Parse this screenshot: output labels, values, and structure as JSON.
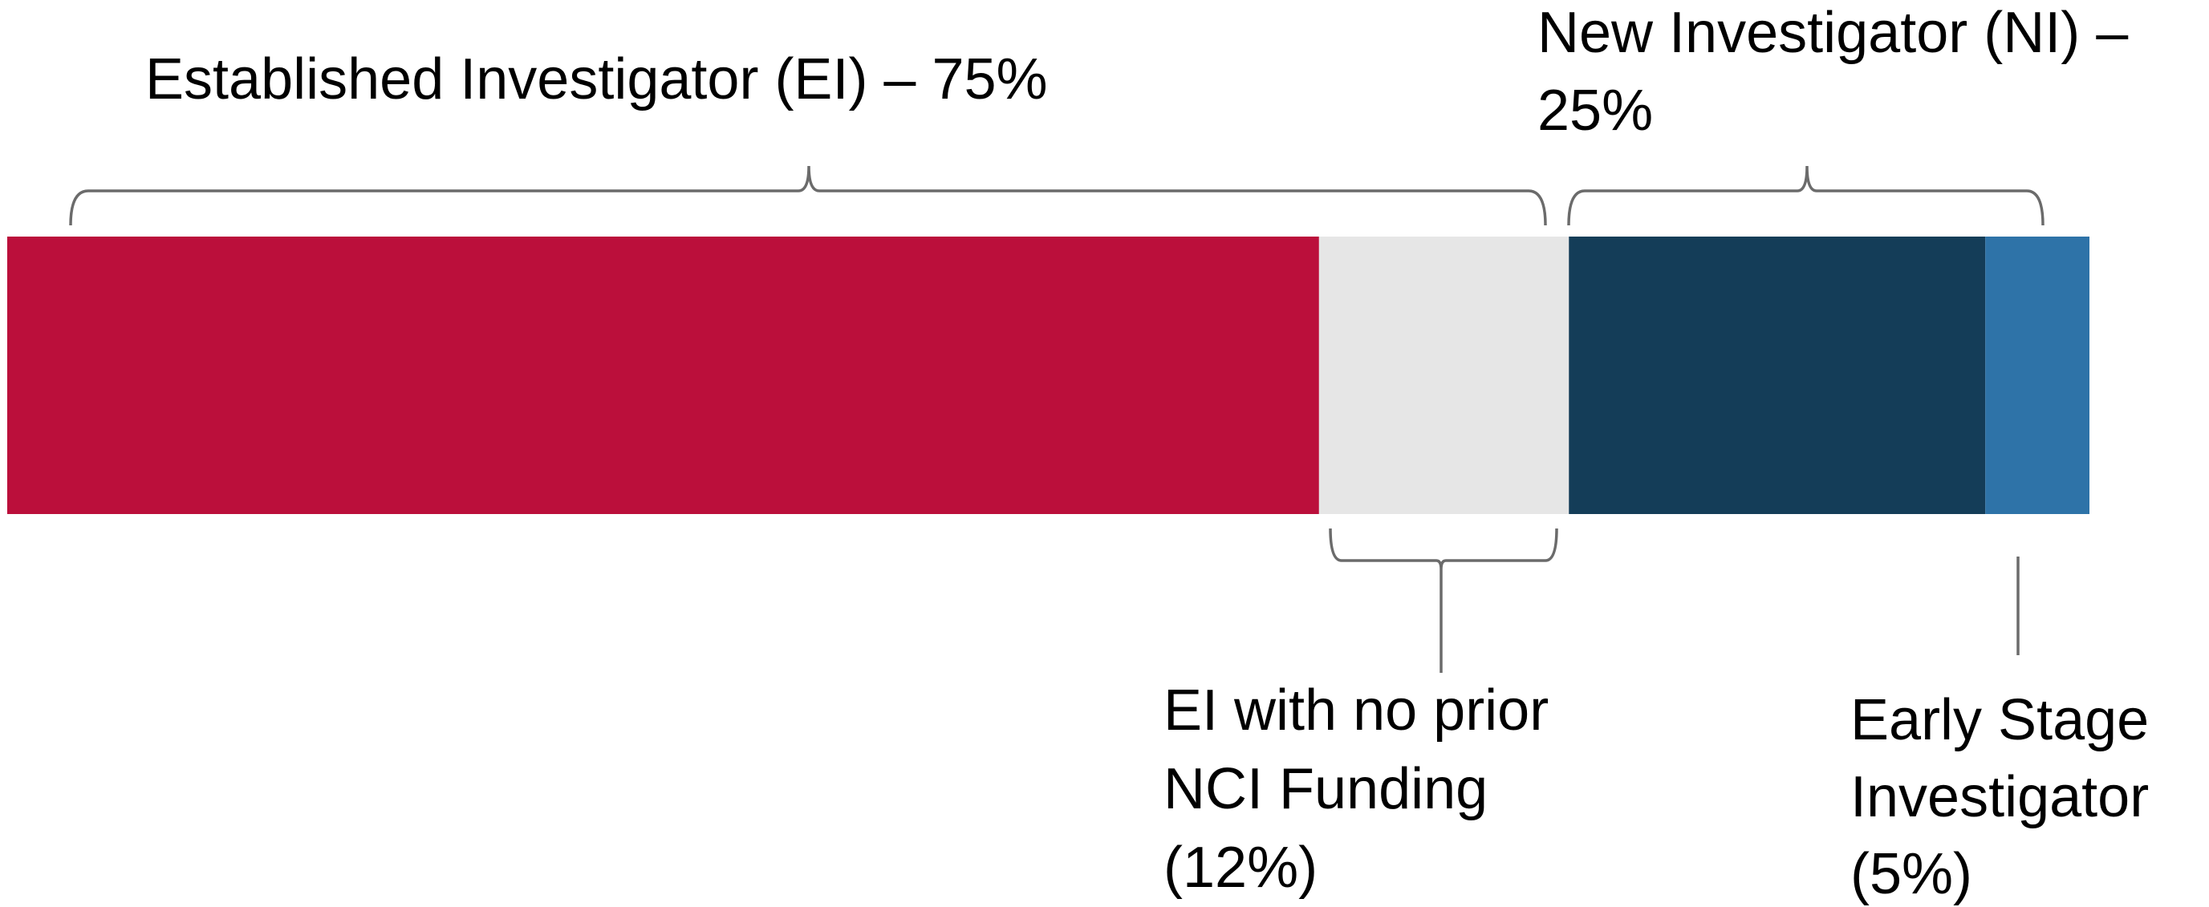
{
  "chart_data": {
    "type": "stacked_bar",
    "values": [
      63,
      12,
      20,
      5
    ],
    "colors": [
      "#bb0f3b",
      "#e6e6e6",
      "#143d58",
      "#2e73a8"
    ],
    "xlim": [
      0,
      100
    ],
    "annotations": [
      {
        "lines": [
          "Established Investigator (EI) – 75%"
        ]
      },
      {
        "lines": [
          "New Investigator (NI) –",
          "25%"
        ]
      },
      {
        "lines": [
          "EI with no prior",
          "NCI Funding",
          "(12%)"
        ]
      },
      {
        "lines": [
          "Early Stage",
          "Investigator",
          "(5%)"
        ]
      }
    ]
  }
}
